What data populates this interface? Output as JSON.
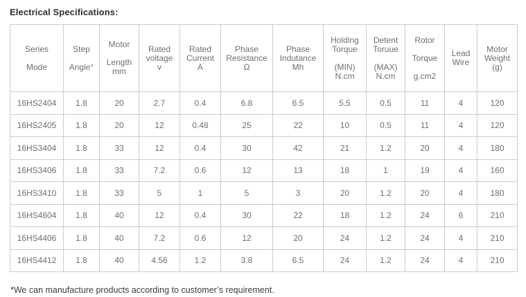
{
  "page": {
    "title": "Electrical Specifications:",
    "footnote": "*We can manufacture products according to customer’s requirement."
  },
  "colors": {
    "background": "#ffffff",
    "title_text": "#2f2f31",
    "table_text": "#6d6e71",
    "table_border": "#cbcbcb",
    "footnote_text": "#3d3d3f"
  },
  "table": {
    "columns": [
      {
        "id": "series-mode",
        "label": "Series Mode",
        "lines": [
          "Series",
          "",
          "Mode"
        ]
      },
      {
        "id": "step-angle",
        "label": "Step Angle°",
        "lines": [
          "Step",
          "",
          "Angle°"
        ]
      },
      {
        "id": "motor-length",
        "label": "Motor Length mm",
        "lines": [
          "Motor",
          "",
          "Length",
          "mm"
        ]
      },
      {
        "id": "rated-voltage",
        "label": "Rated voltage v",
        "lines": [
          "Rated",
          "voltage",
          "v"
        ]
      },
      {
        "id": "rated-current",
        "label": "Rated Current A",
        "lines": [
          "Rated",
          "Current",
          "A"
        ]
      },
      {
        "id": "phase-resistance",
        "label": "Phase Resistance Ω",
        "lines": [
          "Phase",
          "Resistance",
          "Ω"
        ]
      },
      {
        "id": "phase-inductance",
        "label": "Phase Indutance Mh",
        "lines": [
          "Phase",
          "Indutance",
          "Mh"
        ]
      },
      {
        "id": "holding-torque",
        "label": "Holding Torque (MIN) N.cm",
        "lines": [
          "Holding",
          "Torque",
          "",
          "(MIN)",
          "N.cm"
        ]
      },
      {
        "id": "detent-torque",
        "label": "Detent Toruue (MAX) N.cm",
        "lines": [
          "Detent",
          "Toruue",
          "",
          "(MAX)",
          "N.cm"
        ]
      },
      {
        "id": "rotor-torque",
        "label": "Rotor Torque g.cm2",
        "lines": [
          "Rotor",
          "",
          "Torque",
          "",
          "g.cm2"
        ]
      },
      {
        "id": "lead-wire",
        "label": "Lead Wire",
        "lines": [
          "Lead",
          "Wire"
        ]
      },
      {
        "id": "motor-weight",
        "label": "Motor Weight (g)",
        "lines": [
          "Motor",
          "Weight",
          "(g)"
        ]
      }
    ],
    "rows": [
      [
        "16HS2404",
        "1.8",
        "20",
        "2.7",
        "0.4",
        "6.8",
        "6.5",
        "5.5",
        "0.5",
        "11",
        "4",
        "120"
      ],
      [
        "16HS2405",
        "1.8",
        "20",
        "12",
        "0.48",
        "25",
        "22",
        "10",
        "0.5",
        "11",
        "4",
        "120"
      ],
      [
        "16HS3404",
        "1.8",
        "33",
        "12",
        "0.4",
        "30",
        "42",
        "21",
        "1.2",
        "20",
        "4",
        "180"
      ],
      [
        "16HS3406",
        "1.8",
        "33",
        "7.2",
        "0.6",
        "12",
        "13",
        "18",
        "1",
        "19",
        "4",
        "160"
      ],
      [
        "16HS3410",
        "1.8",
        "33",
        "5",
        "1",
        "5",
        "3",
        "20",
        "1.2",
        "20",
        "4",
        "180"
      ],
      [
        "16HS4604",
        "1.8",
        "40",
        "12",
        "0.4",
        "30",
        "22",
        "18",
        "1.2",
        "24",
        "6",
        "210"
      ],
      [
        "16HS4406",
        "1.8",
        "40",
        "7.2",
        "0.6",
        "12",
        "20",
        "24",
        "1.2",
        "24",
        "4",
        "210"
      ],
      [
        "16HS4412",
        "1.8",
        "40",
        "4.56",
        "1.2",
        "3.8",
        "6.5",
        "24",
        "1.2",
        "24",
        "4",
        "210"
      ]
    ]
  }
}
